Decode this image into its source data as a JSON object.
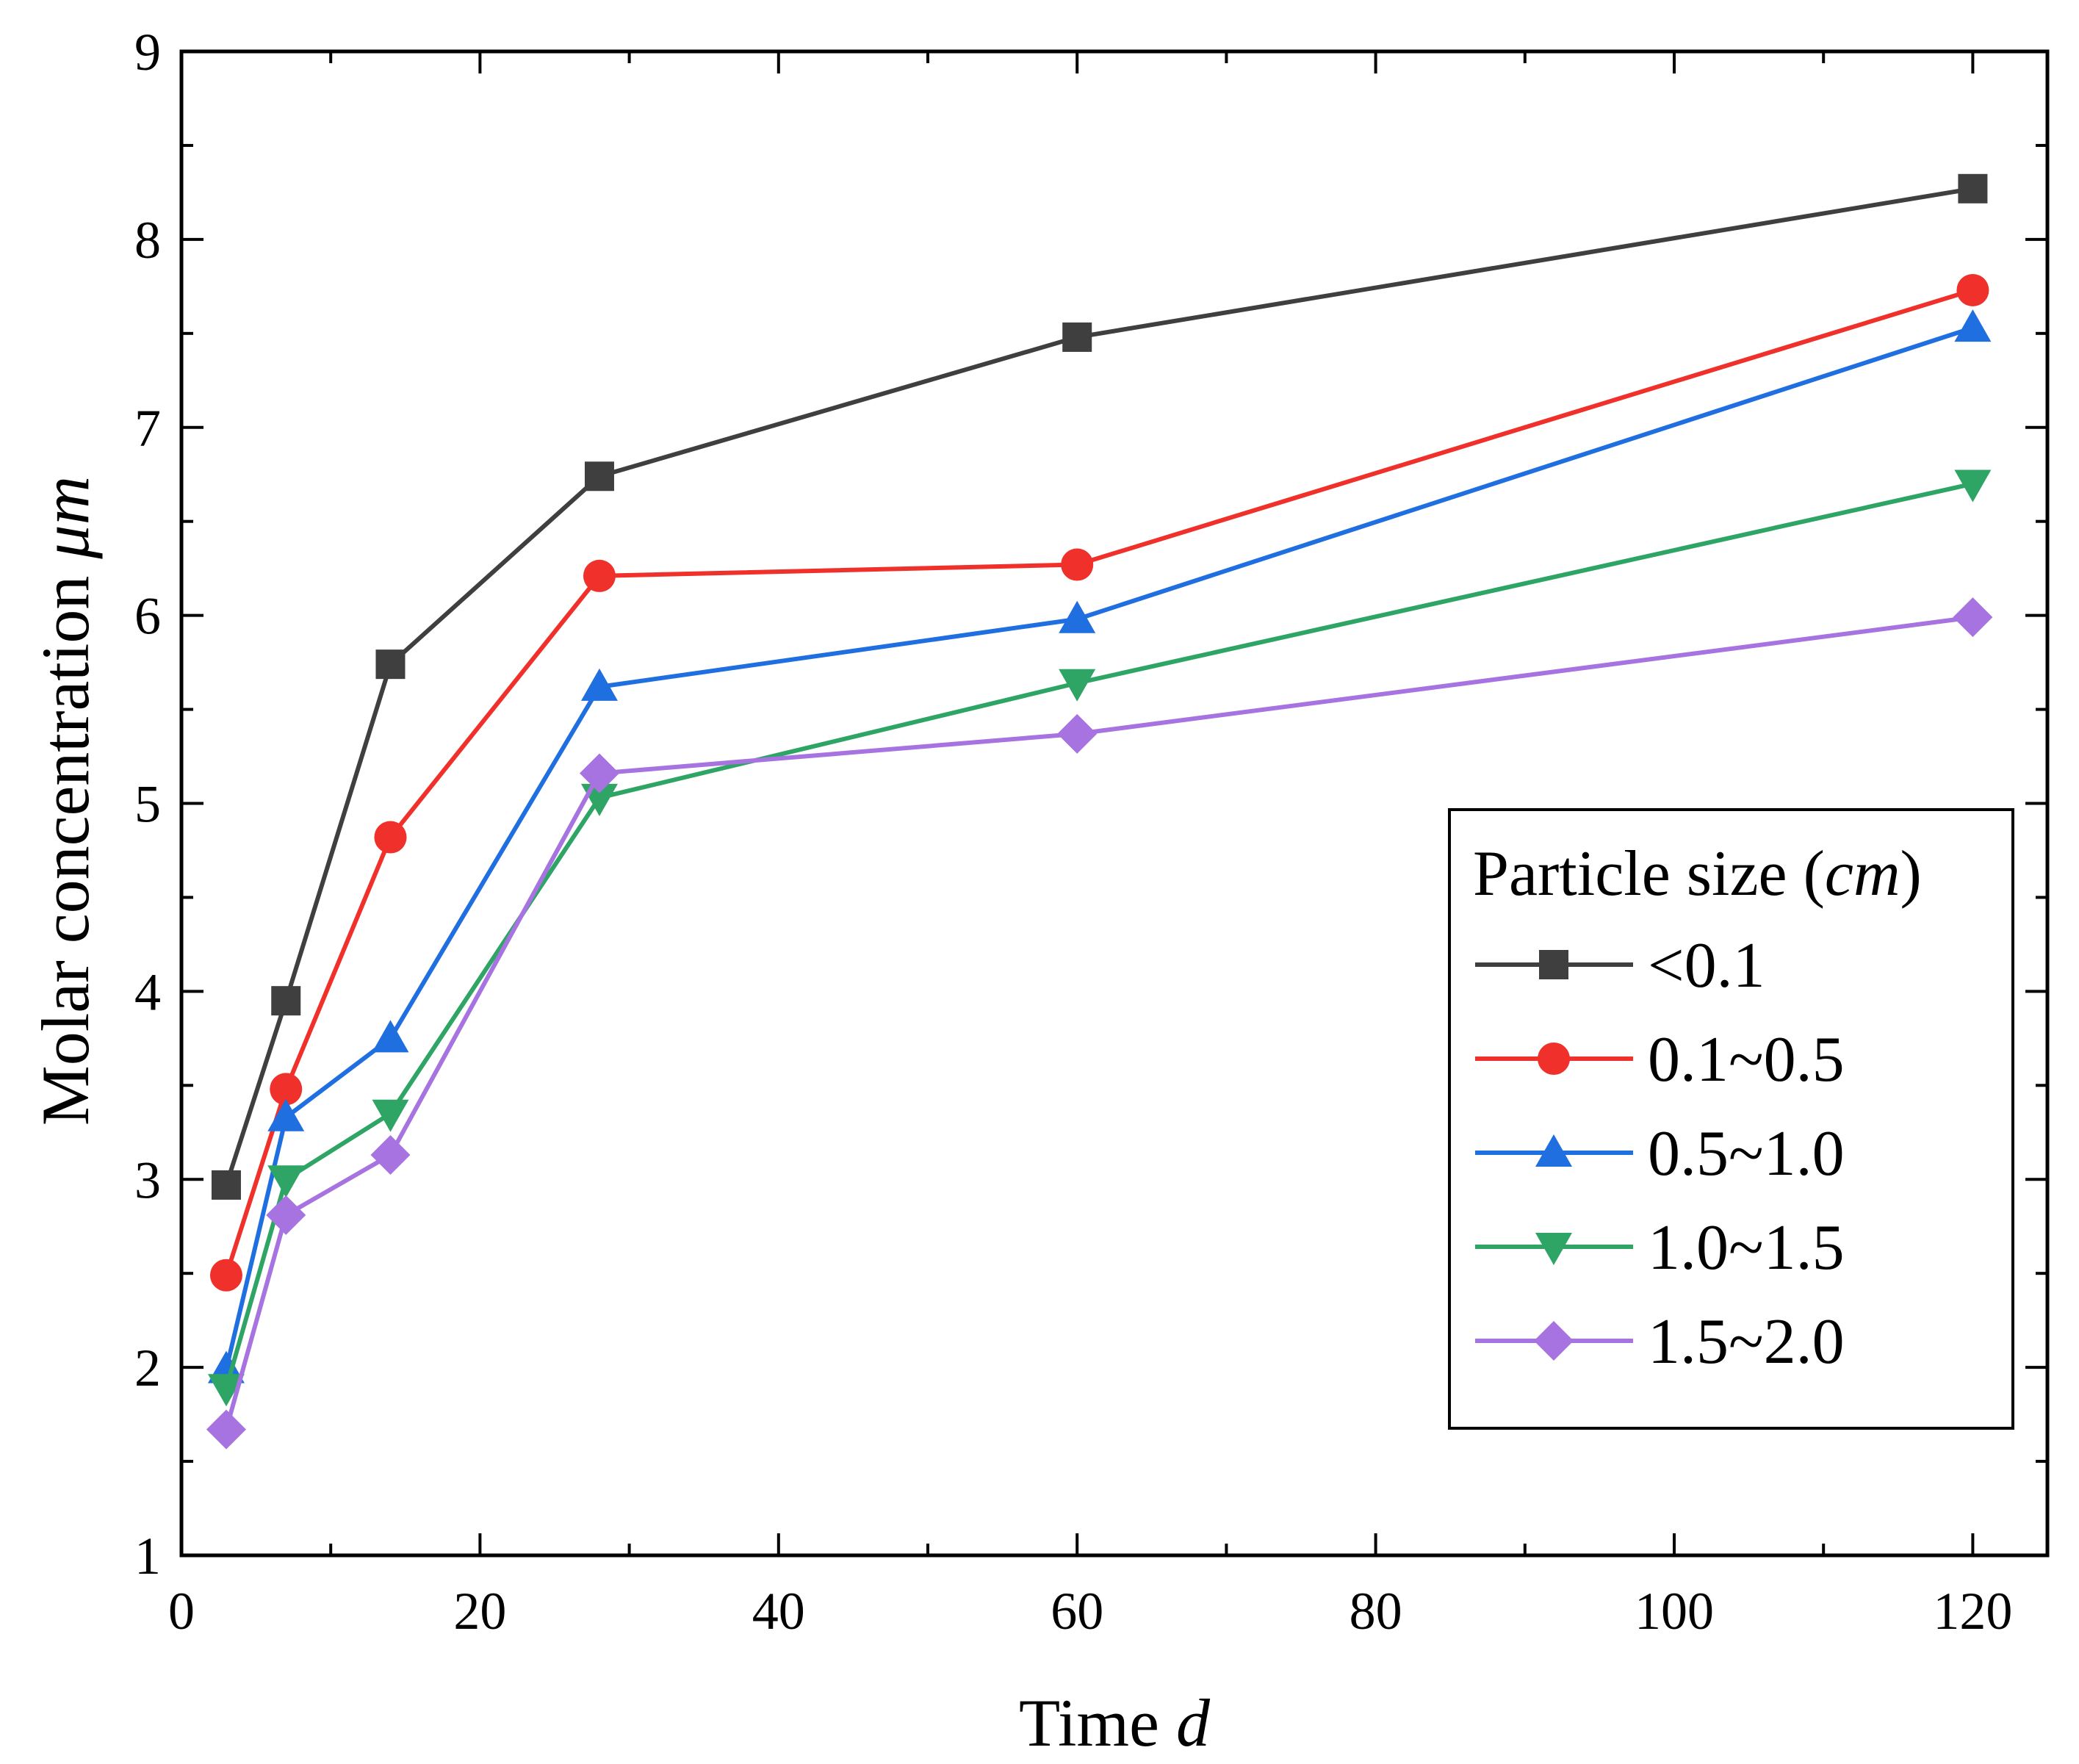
{
  "chart_data": {
    "type": "line",
    "x": [
      3,
      7,
      14,
      28,
      60,
      120
    ],
    "xlim": [
      0,
      125
    ],
    "ylim": [
      1,
      9
    ],
    "xticks": [
      0,
      20,
      40,
      60,
      80,
      100,
      120
    ],
    "yticks": [
      1,
      2,
      3,
      4,
      5,
      6,
      7,
      8,
      9
    ],
    "xtick_labels": [
      "0",
      "20",
      "40",
      "60",
      "80",
      "100",
      "120"
    ],
    "ytick_labels": [
      "1",
      "2",
      "3",
      "4",
      "5",
      "6",
      "7",
      "8",
      "9"
    ],
    "xlabel": "Time",
    "xlabel_unit": "d",
    "ylabel": "Molar concentration",
    "ylabel_unit": "μm",
    "grid": false,
    "legend": {
      "placement": "right",
      "title": "Particle size (",
      "title_unit": "cm",
      "title_close": ")"
    },
    "series": [
      {
        "name": "<0.1",
        "color": "#3f3f3f",
        "marker": "square",
        "values": [
          2.97,
          3.95,
          5.74,
          6.74,
          7.48,
          8.27
        ]
      },
      {
        "name": "0.1~0.5",
        "color": "#f0302a",
        "marker": "circle",
        "values": [
          2.49,
          3.48,
          4.82,
          6.21,
          6.27,
          7.73
        ]
      },
      {
        "name": "0.5~1.0",
        "color": "#1f6fe0",
        "marker": "triangle-up",
        "values": [
          1.99,
          3.33,
          3.75,
          5.62,
          5.98,
          7.53
        ]
      },
      {
        "name": "1.0~1.5",
        "color": "#2ea564",
        "marker": "triangle-down",
        "values": [
          1.89,
          3.0,
          3.35,
          5.03,
          5.64,
          6.7
        ]
      },
      {
        "name": "1.5~2.0",
        "color": "#a673e0",
        "marker": "diamond",
        "values": [
          1.67,
          2.81,
          3.13,
          5.16,
          5.37,
          5.99
        ]
      }
    ]
  }
}
